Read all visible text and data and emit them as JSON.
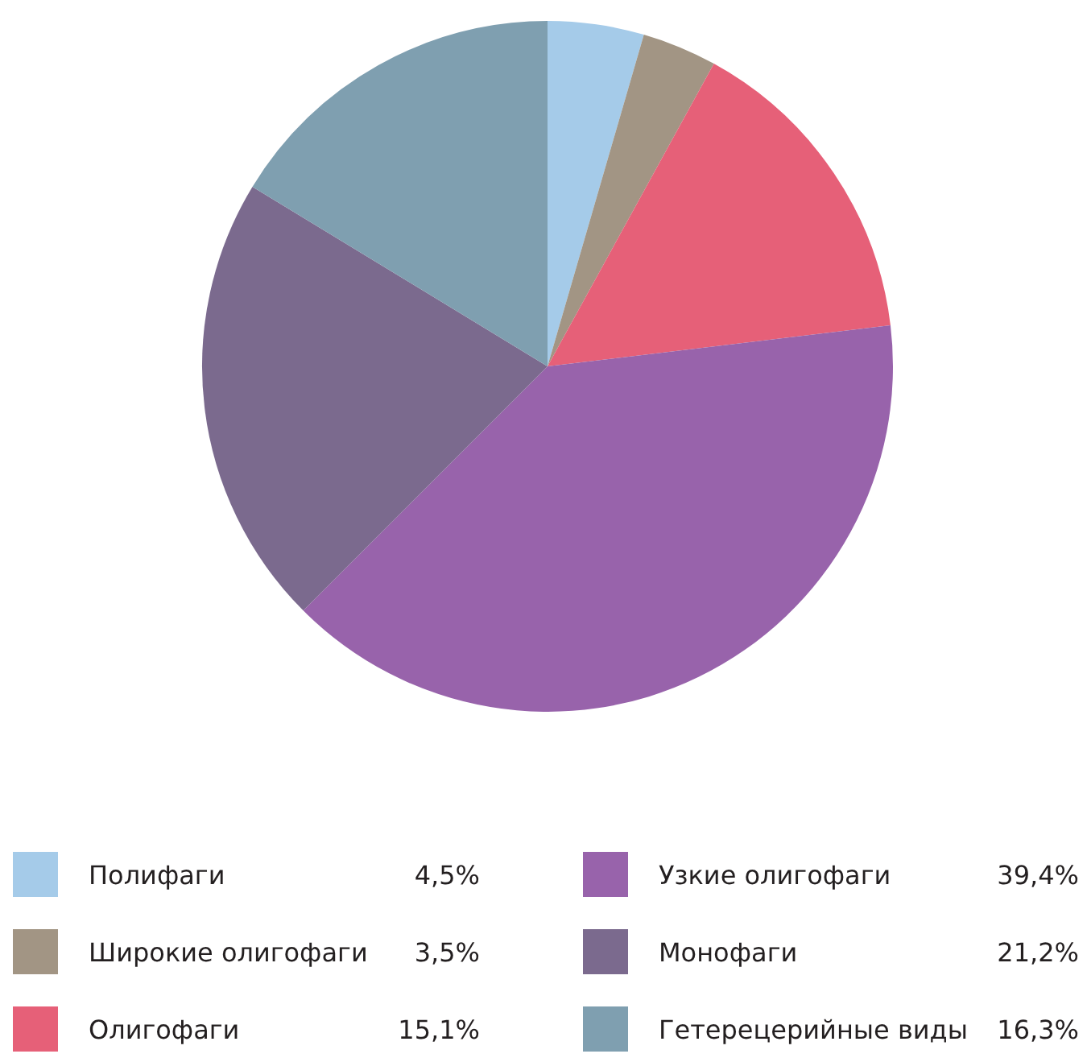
{
  "chart_data": {
    "type": "pie",
    "categories": [
      "Полифаги",
      "Широкие олигофаги",
      "Олигофаги",
      "Узкие олигофаги",
      "Монофаги",
      "Гетерецерийные виды"
    ],
    "values": [
      4.5,
      3.5,
      15.1,
      39.4,
      21.2,
      16.3
    ],
    "value_labels": [
      "4,5%",
      "3,5%",
      "15,1%",
      "39,4%",
      "21,2%",
      "16,3%"
    ],
    "colors": [
      "#a5cbe9",
      "#a29584",
      "#e66078",
      "#9863ab",
      "#7b6a8e",
      "#7f9fb0"
    ],
    "legend": "bottom"
  }
}
